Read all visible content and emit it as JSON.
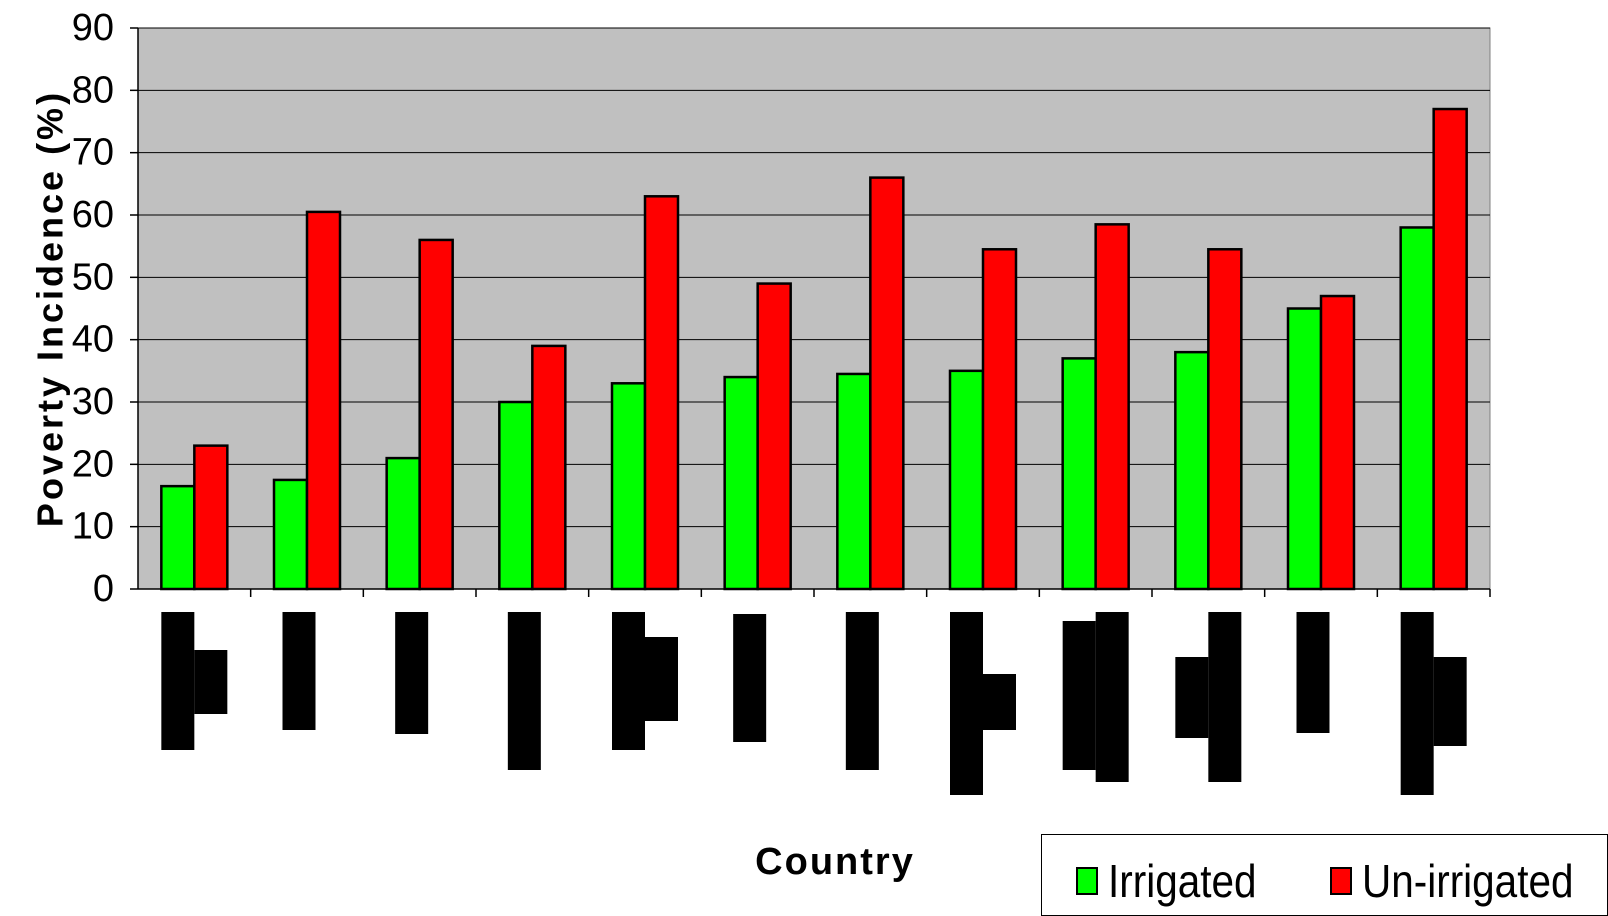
{
  "chart_data": {
    "type": "bar",
    "title": "",
    "xlabel": "Country",
    "ylabel": "Poverty Incidence (%)",
    "ylim": [
      0,
      90
    ],
    "yticks": [
      0,
      10,
      20,
      30,
      40,
      50,
      60,
      70,
      80,
      90
    ],
    "grid": "horizontal",
    "plot_background": "#c0c0c0",
    "legend_position": "bottom-right",
    "category_count": 12,
    "categories_redacted": true,
    "series": [
      {
        "name": "Irrigated",
        "color": "#00ff00",
        "values": [
          16.5,
          17.5,
          21,
          30,
          33,
          34,
          34.5,
          35,
          37,
          38,
          45,
          58
        ]
      },
      {
        "name": "Un-irrigated",
        "color": "#ff0000",
        "values": [
          23,
          60.5,
          56,
          39,
          63,
          49,
          66,
          54.5,
          58.5,
          54.5,
          47,
          77
        ]
      }
    ]
  }
}
